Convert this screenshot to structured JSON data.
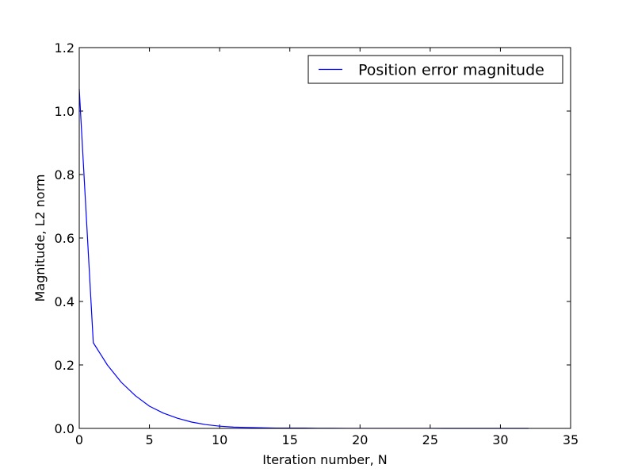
{
  "chart_data": {
    "type": "line",
    "title": "",
    "xlabel": "Iteration number, N",
    "ylabel": "Magnitude, L2 norm",
    "xlim": [
      0,
      35
    ],
    "ylim": [
      0,
      1.2
    ],
    "xticks": [
      0,
      5,
      10,
      15,
      20,
      25,
      30,
      35
    ],
    "yticks": [
      0.0,
      0.2,
      0.4,
      0.6,
      0.8,
      1.0,
      1.2
    ],
    "xtick_labels": [
      "0",
      "5",
      "10",
      "15",
      "20",
      "25",
      "30",
      "35"
    ],
    "ytick_labels": [
      "0.0",
      "0.2",
      "0.4",
      "0.6",
      "0.8",
      "1.0",
      "1.2"
    ],
    "grid": false,
    "legend": {
      "position": "top-right"
    },
    "series": [
      {
        "name": "Position error magnitude",
        "color": "#0000ff",
        "x": [
          0,
          1,
          2,
          3,
          4,
          5,
          6,
          7,
          8,
          9,
          10,
          11,
          12,
          13,
          14,
          15,
          16,
          17,
          18,
          19,
          20,
          21,
          22,
          23,
          24,
          25,
          26,
          27,
          28,
          29,
          30,
          31,
          32
        ],
        "y": [
          1.07,
          0.27,
          0.2,
          0.145,
          0.103,
          0.07,
          0.048,
          0.032,
          0.02,
          0.012,
          0.007,
          0.004,
          0.003,
          0.002,
          0.001,
          0.001,
          0.001,
          0.0005,
          0.0003,
          0.0002,
          0.0001,
          0.0001,
          0.0001,
          0.0001,
          0.0001,
          0.0001,
          0,
          0,
          0,
          0,
          0,
          0,
          0
        ]
      }
    ]
  }
}
